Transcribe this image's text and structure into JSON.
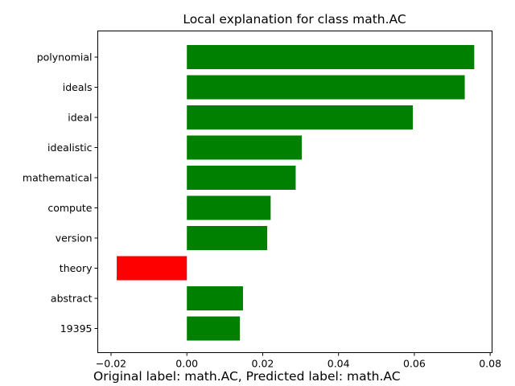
{
  "chart_data": {
    "type": "bar",
    "orientation": "horizontal",
    "title": "Local explanation for class math.AC",
    "xlabel": "",
    "ylabel": "",
    "xlim": [
      -0.0235,
      0.0805
    ],
    "xticks": [
      -0.02,
      0.0,
      0.02,
      0.04,
      0.06,
      0.08
    ],
    "xtick_labels": [
      "−0.02",
      "0.00",
      "0.02",
      "0.04",
      "0.06",
      "0.08"
    ],
    "categories": [
      "polynomial",
      "ideals",
      "ideal",
      "idealistic",
      "mathematical",
      "compute",
      "version",
      "theory",
      "abstract",
      "19395"
    ],
    "values": [
      0.0758,
      0.0733,
      0.0596,
      0.0303,
      0.0287,
      0.0221,
      0.0212,
      -0.0185,
      0.0148,
      0.014
    ],
    "positive_color": "#008000",
    "negative_color": "#ff0000",
    "grid": false,
    "legend": "none"
  },
  "caption": "Original label: math.AC, Predicted label: math.AC"
}
